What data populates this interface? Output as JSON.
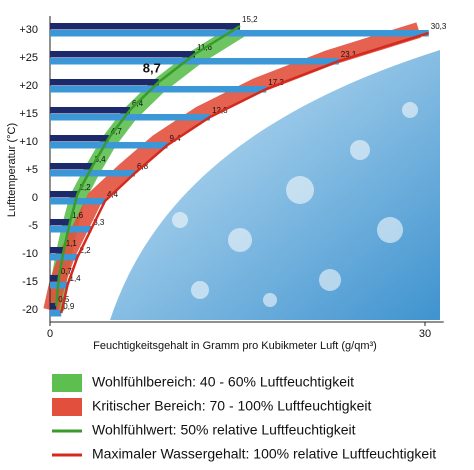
{
  "chart_data": {
    "type": "bar",
    "orientation": "horizontal",
    "x_label": "Feuchtigkeitsgehalt in Gramm pro Kubikmeter Luft (g/qm³)",
    "y_label": "Lufttemperatur (°C)",
    "categories": [
      "+30",
      "+25",
      "+20",
      "+15",
      "+10",
      "+5",
      "0",
      "-5",
      "-10",
      "-15",
      "-20"
    ],
    "series": [
      {
        "name": "Wohlfühlwert: 50% relative Luftfeuchtigkeit",
        "color": "#1c2a6b",
        "line_color": "#3a9a2a",
        "values": [
          15.2,
          11.6,
          8.7,
          6.4,
          4.7,
          3.4,
          2.2,
          1.6,
          1.1,
          0.7,
          0.5
        ],
        "value_labels": [
          "15,2",
          "11,6",
          "8,7",
          "6,4",
          "4,7",
          "3,4",
          "2,2",
          "1,6",
          "1,1",
          "0,7",
          "0,5"
        ]
      },
      {
        "name": "Maximaler Wassergehalt: 100% relative Luftfeuchtigkeit",
        "color": "#3b97d6",
        "line_color": "#d42a1e",
        "values": [
          30.3,
          23.1,
          17.3,
          12.8,
          9.4,
          6.8,
          4.4,
          3.3,
          2.2,
          1.4,
          0.9
        ],
        "value_labels": [
          "30,3",
          "23,1",
          "17,3",
          "12,8",
          "9,4",
          "6,8",
          "4,4",
          "3,3",
          "2,2",
          "1,4",
          "0,9"
        ]
      }
    ],
    "bands": [
      {
        "name": "Wohlfühlbereich: 40 - 60% Luftfeuchtigkeit",
        "color": "#5cbf4f"
      },
      {
        "name": "Kritischer Bereich: 70 - 100% Luftfeuchtigkeit",
        "color": "#e2503d"
      }
    ],
    "highlight": 2,
    "xlim": [
      0,
      31.5
    ],
    "xticks": [
      0,
      30
    ]
  }
}
